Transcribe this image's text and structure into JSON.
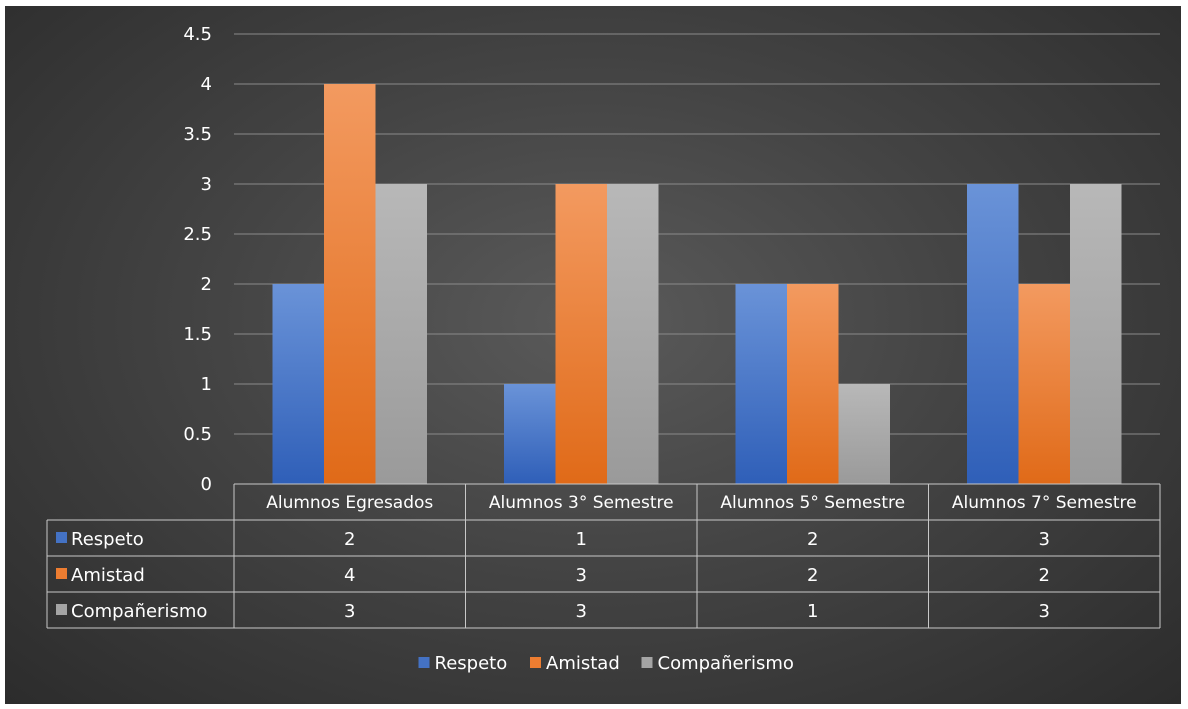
{
  "chart_data": {
    "type": "bar",
    "categories": [
      "Alumnos Egresados",
      "Alumnos 3° Semestre",
      "Alumnos 5° Semestre",
      "Alumnos 7° Semestre"
    ],
    "series": [
      {
        "name": "Respeto",
        "values": [
          2,
          1,
          2,
          3
        ],
        "color": "#4472c4"
      },
      {
        "name": "Amistad",
        "values": [
          4,
          3,
          2,
          2
        ],
        "color": "#ed7d31"
      },
      {
        "name": "Compañerismo",
        "values": [
          3,
          3,
          1,
          3
        ],
        "color": "#a5a5a5"
      }
    ],
    "y_ticks": [
      "0",
      "0.5",
      "1",
      "1.5",
      "2",
      "2.5",
      "3",
      "3.5",
      "4",
      "4.5"
    ],
    "ylim": [
      0,
      4.5
    ],
    "grid": true,
    "data_table": true,
    "legend_position": "bottom"
  }
}
